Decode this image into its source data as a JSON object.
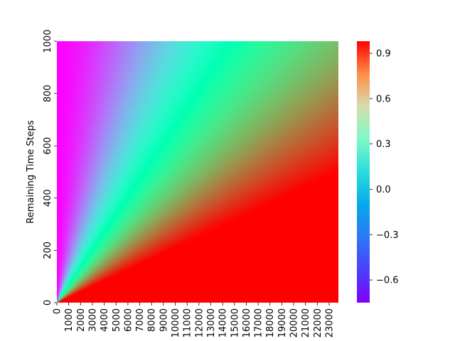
{
  "chart_data": {
    "type": "heatmap",
    "title": "",
    "xlabel": "",
    "ylabel": "Remaining Time Steps",
    "x_range": [
      0,
      23000
    ],
    "y_range": [
      0,
      1000
    ],
    "x_tick_labels": [
      "0",
      "1000",
      "2000",
      "3000",
      "4000",
      "5000",
      "6000",
      "7000",
      "8000",
      "9000",
      "10000",
      "11000",
      "12000",
      "13000",
      "14000",
      "15000",
      "16000",
      "17000",
      "18000",
      "19000",
      "20000",
      "21000",
      "22000",
      "23000"
    ],
    "y_tick_labels": [
      "0",
      "200",
      "400",
      "600",
      "800",
      "1000"
    ],
    "colorbar": {
      "colormap": "rainbow",
      "vmin": -0.75,
      "vmax": 0.98,
      "tick_labels": [
        "−0.6",
        "−0.3",
        "0.0",
        "0.3",
        "0.6",
        "0.9"
      ],
      "tick_values": [
        -0.6,
        -0.3,
        0.0,
        0.3,
        0.6,
        0.9
      ]
    },
    "description_of_field": "value increases with x/y ratio: low (purple/blue) near left edge, high (red) in bottom-right wedge"
  }
}
